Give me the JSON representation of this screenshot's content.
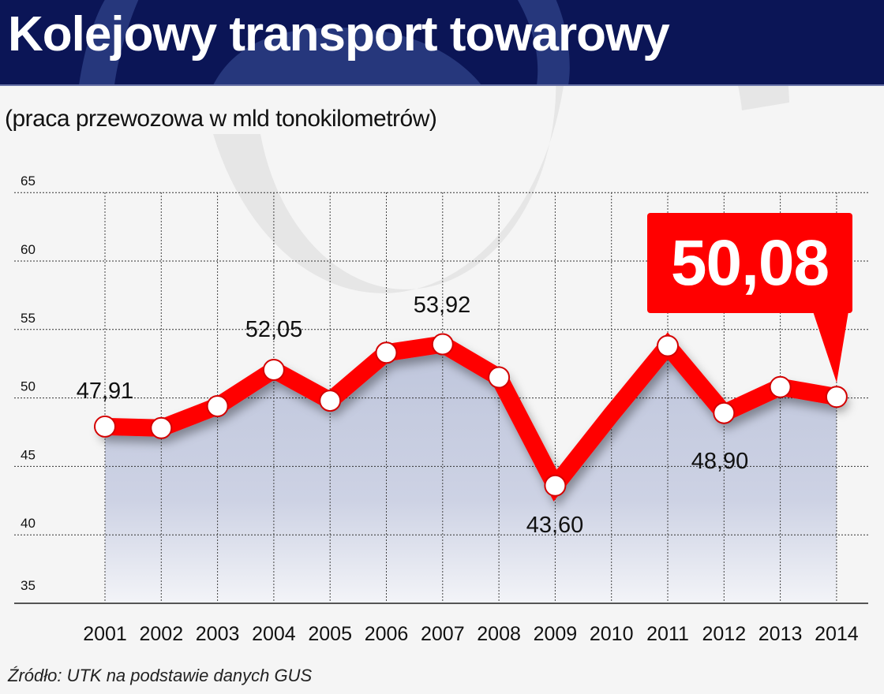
{
  "header": {
    "title": "Kolejowy transport towarowy",
    "subtitle": "(praca przewozowa w mld tonokilometrów)"
  },
  "source": "Źródło: UTK na podstawie danych GUS",
  "callout": {
    "value": "50,08",
    "year": "2014"
  },
  "colors": {
    "header_bg": "#0b1556",
    "line": "#ff0000",
    "area_top": "#bfc6dc",
    "background": "#f5f5f5",
    "callout_bg": "#ff0000"
  },
  "chart_data": {
    "type": "line",
    "title": "Kolejowy transport towarowy",
    "subtitle": "(praca przewozowa w mld tonokilometrów)",
    "xlabel": "",
    "ylabel": "mld tonokilometrów",
    "categories": [
      "2001",
      "2002",
      "2003",
      "2004",
      "2005",
      "2006",
      "2007",
      "2008",
      "2009",
      "2010",
      "2011",
      "2012",
      "2013",
      "2014"
    ],
    "series": [
      {
        "name": "Praca przewozowa",
        "values": [
          47.91,
          47.8,
          49.4,
          52.05,
          49.8,
          53.3,
          53.92,
          51.5,
          43.6,
          48.8,
          53.8,
          48.9,
          50.8,
          50.08
        ],
        "markers": [
          true,
          true,
          true,
          true,
          true,
          true,
          true,
          true,
          true,
          false,
          true,
          true,
          true,
          true
        ]
      }
    ],
    "data_labels": [
      {
        "year": "2001",
        "text": "47,91"
      },
      {
        "year": "2004",
        "text": "52,05"
      },
      {
        "year": "2007",
        "text": "53,92"
      },
      {
        "year": "2009",
        "text": "43,60"
      },
      {
        "year": "2012",
        "text": "48,90"
      },
      {
        "year": "2014",
        "text": "50,08"
      }
    ],
    "yticks": [
      "65",
      "60",
      "55",
      "50",
      "45",
      "40",
      "35"
    ],
    "ylim": [
      35,
      65
    ],
    "grid": true,
    "legend": "none",
    "source": "Źródło: UTK na podstawie danych GUS"
  }
}
